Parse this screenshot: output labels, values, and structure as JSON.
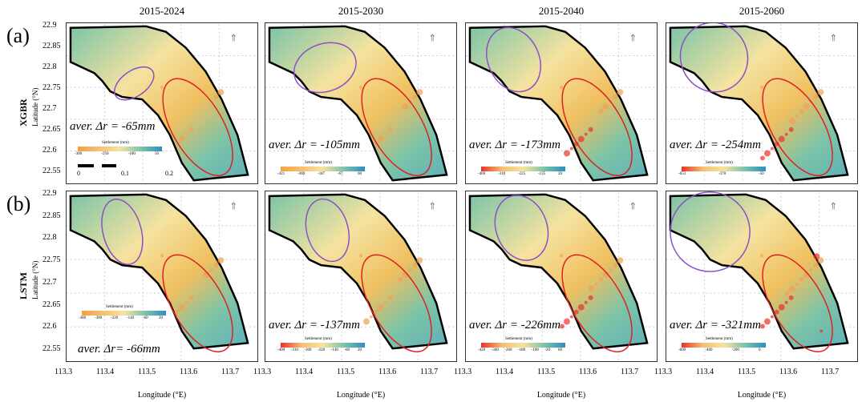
{
  "periods": [
    "2015-2024",
    "2015-2030",
    "2015-2040",
    "2015-2060"
  ],
  "rows": [
    {
      "tag": "(a)",
      "model": "XGBR",
      "avg": [
        "aver. Δr = -65mm",
        "aver. Δr = -105mm",
        "aver. Δr = -173mm",
        "aver. Δr = -254mm"
      ],
      "legends": [
        [
          "-300",
          "-250",
          "-100",
          "50"
        ],
        [
          "-421",
          "-300",
          "-187",
          "-67",
          "60"
        ],
        [
          "-400",
          "-310",
          "-225",
          "-135",
          "20"
        ],
        [
          "-653",
          "-370",
          "-50"
        ]
      ]
    },
    {
      "tag": "(b)",
      "model": "LSTM",
      "avg": [
        "aver. Δr= -66mm",
        "aver. Δr = -137mm",
        "aver. Δr = -226mm",
        "aver. Δr = -321mm"
      ],
      "legends": [
        [
          "-380",
          "-300",
          "-220",
          "-140",
          "-60",
          "20"
        ],
        [
          "-400",
          "-310",
          "-300",
          "-220",
          "-140",
          "-60",
          "20"
        ],
        [
          "-420",
          "-340",
          "-260",
          "-180",
          "-100",
          "-20",
          "60"
        ],
        [
          "-600",
          "-400",
          "-200",
          "0"
        ]
      ]
    }
  ],
  "legend_title": "Settlement (mm)",
  "scalebar": [
    "0",
    "0.1",
    "0.2"
  ],
  "lat_ticks": [
    "22.9",
    "22.85",
    "22.8",
    "22.75",
    "22.7",
    "22.65",
    "22.6",
    "22.55"
  ],
  "lon_ticks": [
    "113.3",
    "113.4",
    "113.5",
    "113.6",
    "113.7"
  ],
  "lat_label": "Latitude (°N)",
  "lon_label": "Longitude (°E)",
  "colors": {
    "low": "#e8322a",
    "mid": "#f5e3a0",
    "high": "#2c8fc0",
    "base": "#7cc4a8",
    "ellipse_purple": "#8a4fc8",
    "ellipse_red": "#e02020"
  }
}
